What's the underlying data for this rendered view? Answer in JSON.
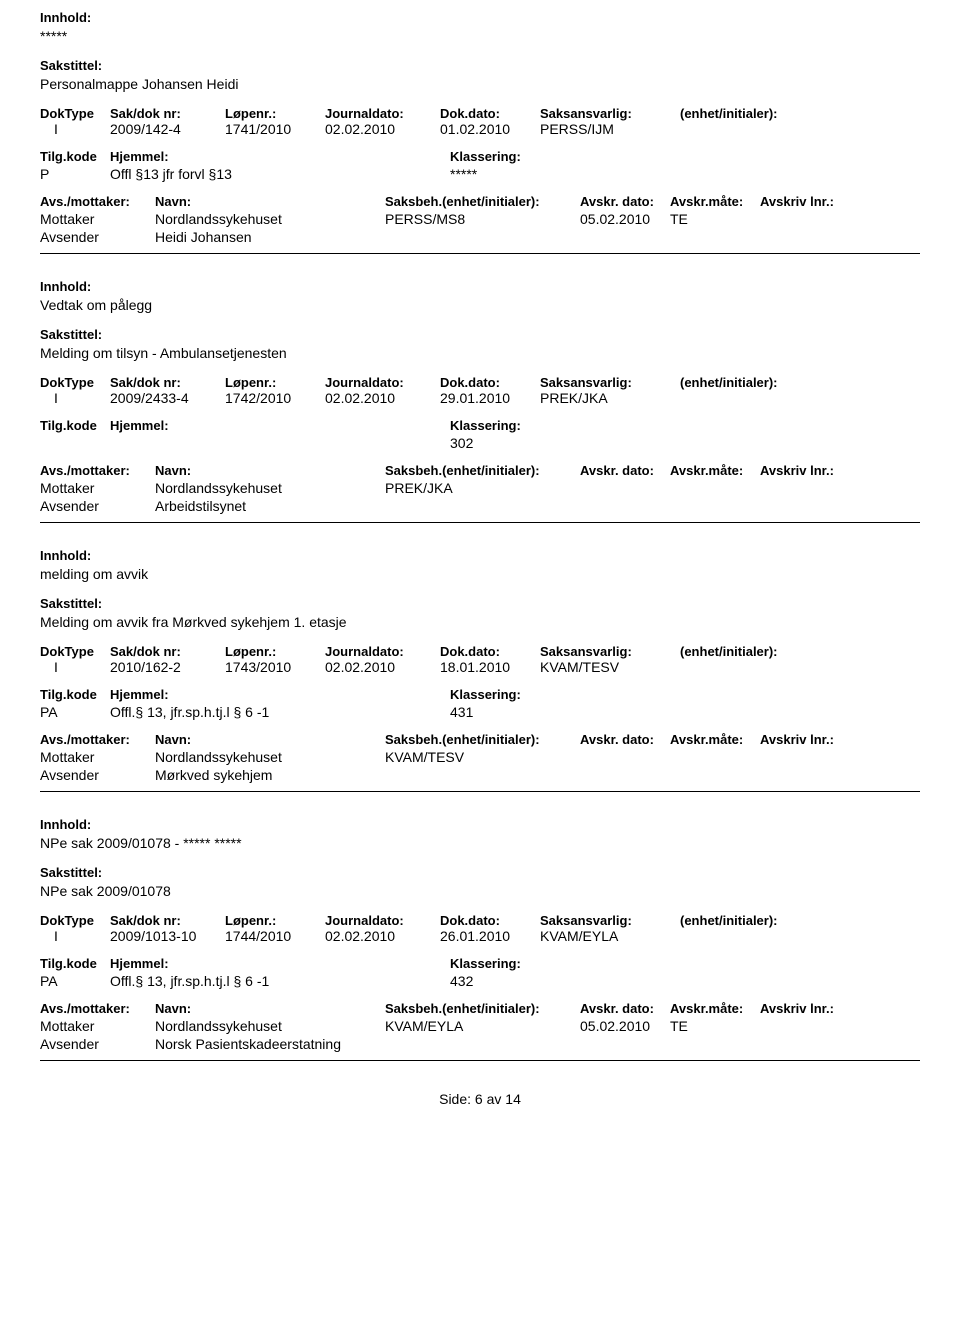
{
  "labels": {
    "innhold": "Innhold:",
    "sakstittel": "Sakstittel:",
    "doktype": "DokType",
    "sakdok": "Sak/dok nr:",
    "lopenr": "Løpenr.:",
    "journaldato": "Journaldato:",
    "dokdato": "Dok.dato:",
    "saksansvarlig": "Saksansvarlig:",
    "enhet": "(enhet/initialer):",
    "tilgkode": "Tilg.kode",
    "hjemmel": "Hjemmel:",
    "klassering": "Klassering:",
    "avsmottaker": "Avs./mottaker:",
    "navn": "Navn:",
    "saksbeh": "Saksbeh.(enhet/initialer):",
    "avskrdato": "Avskr. dato:",
    "avskrmote": "Avskr.måte:",
    "avskrivlnr": "Avskriv lnr.:",
    "mottaker": "Mottaker",
    "avsender": "Avsender"
  },
  "records": [
    {
      "innhold": "*****",
      "sakstittel": "Personalmappe Johansen Heidi",
      "doktype": "I",
      "sakdok": "2009/142-4",
      "lopenr": "1741/2010",
      "jdato": "02.02.2010",
      "ddato": "01.02.2010",
      "saksansvarlig": "PERSS/IJM",
      "enhet": "",
      "tilgkode": "P",
      "hjemmel": "Offl §13 jfr forvl §13",
      "klassering": "*****",
      "mottaker_navn": "Nordlandssykehuset",
      "saksbeh": "PERSS/MS8",
      "avskr_dato": "05.02.2010",
      "avskr_mote": "TE",
      "avskriv_lnr": "",
      "avsender_navn": "Heidi Johansen"
    },
    {
      "innhold": "Vedtak om pålegg",
      "sakstittel": "Melding om  tilsyn - Ambulansetjenesten",
      "doktype": "I",
      "sakdok": "2009/2433-4",
      "lopenr": "1742/2010",
      "jdato": "02.02.2010",
      "ddato": "29.01.2010",
      "saksansvarlig": "PREK/JKA",
      "enhet": "",
      "tilgkode": "",
      "hjemmel": "",
      "klassering": "302",
      "mottaker_navn": "Nordlandssykehuset",
      "saksbeh": "PREK/JKA",
      "avskr_dato": "",
      "avskr_mote": "",
      "avskriv_lnr": "",
      "avsender_navn": "Arbeidstilsynet"
    },
    {
      "innhold": "melding om avvik",
      "sakstittel": "Melding om avvik fra Mørkved sykehjem 1. etasje",
      "doktype": "I",
      "sakdok": "2010/162-2",
      "lopenr": "1743/2010",
      "jdato": "02.02.2010",
      "ddato": "18.01.2010",
      "saksansvarlig": "KVAM/TESV",
      "enhet": "",
      "tilgkode": "PA",
      "hjemmel": "Offl.§ 13, jfr.sp.h.tj.l § 6 -1",
      "klassering": "431",
      "mottaker_navn": "Nordlandssykehuset",
      "saksbeh": "KVAM/TESV",
      "avskr_dato": "",
      "avskr_mote": "",
      "avskriv_lnr": "",
      "avsender_navn": "Mørkved sykehjem"
    },
    {
      "innhold": "NPe sak 2009/01078 - ***** *****",
      "sakstittel": "NPe sak 2009/01078",
      "doktype": "I",
      "sakdok": "2009/1013-10",
      "lopenr": "1744/2010",
      "jdato": "02.02.2010",
      "ddato": "26.01.2010",
      "saksansvarlig": "KVAM/EYLA",
      "enhet": "",
      "tilgkode": "PA",
      "hjemmel": "Offl.§ 13, jfr.sp.h.tj.l § 6 -1",
      "klassering": "432",
      "mottaker_navn": "Nordlandssykehuset",
      "saksbeh": "KVAM/EYLA",
      "avskr_dato": "05.02.2010",
      "avskr_mote": "TE",
      "avskriv_lnr": "",
      "avsender_navn": "Norsk Pasientskadeerstatning"
    }
  ],
  "footer": {
    "side_label": "Side:",
    "page": "6",
    "av": "av",
    "total": "14"
  }
}
